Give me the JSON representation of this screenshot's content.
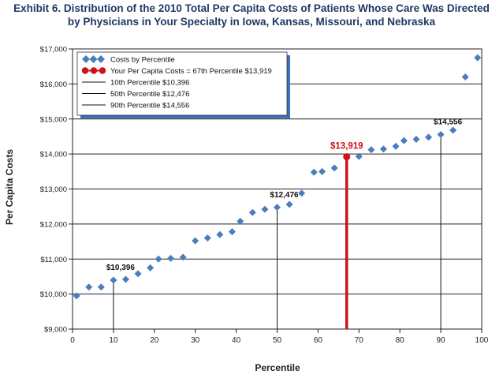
{
  "title_line1": "Exhibit 6. Distribution of the 2010 Total Per Capita Costs of Patients Whose Care Was Directed",
  "title_line2": "by Physicians in Your Specialty in Iowa, Kansas, Missouri, and Nebraska",
  "colors": {
    "marker": "#4a7ebb",
    "highlight": "#d0101a",
    "legend_frame": "#3f6fbf",
    "title": "#1f3864"
  },
  "chart_data": {
    "type": "scatter",
    "xlabel": "Percentile",
    "ylabel": "Per Capita Costs",
    "xlim": [
      0,
      100
    ],
    "ylim": [
      9000,
      17000
    ],
    "xticks": [
      0,
      10,
      20,
      30,
      40,
      50,
      60,
      70,
      80,
      90,
      100
    ],
    "yticks": [
      9000,
      10000,
      11000,
      12000,
      13000,
      14000,
      15000,
      16000,
      17000
    ],
    "ytick_labels": [
      "$9,000",
      "$10,000",
      "$11,000",
      "$12,000",
      "$13,000",
      "$14,000",
      "$15,000",
      "$16,000",
      "$17,000"
    ],
    "grid": "horizontal",
    "series": [
      {
        "name": "Costs by Percentile",
        "points": [
          {
            "x": 1,
            "y": 9950
          },
          {
            "x": 4,
            "y": 10200
          },
          {
            "x": 7,
            "y": 10200
          },
          {
            "x": 10,
            "y": 10396
          },
          {
            "x": 13,
            "y": 10420
          },
          {
            "x": 16,
            "y": 10580
          },
          {
            "x": 19,
            "y": 10750
          },
          {
            "x": 21,
            "y": 11000
          },
          {
            "x": 24,
            "y": 11020
          },
          {
            "x": 27,
            "y": 11050
          },
          {
            "x": 30,
            "y": 11520
          },
          {
            "x": 33,
            "y": 11600
          },
          {
            "x": 36,
            "y": 11700
          },
          {
            "x": 39,
            "y": 11780
          },
          {
            "x": 41,
            "y": 12080
          },
          {
            "x": 44,
            "y": 12330
          },
          {
            "x": 47,
            "y": 12420
          },
          {
            "x": 50,
            "y": 12476
          },
          {
            "x": 53,
            "y": 12560
          },
          {
            "x": 56,
            "y": 12880
          },
          {
            "x": 59,
            "y": 13480
          },
          {
            "x": 61,
            "y": 13500
          },
          {
            "x": 64,
            "y": 13600
          },
          {
            "x": 70,
            "y": 13930
          },
          {
            "x": 73,
            "y": 14120
          },
          {
            "x": 76,
            "y": 14140
          },
          {
            "x": 79,
            "y": 14220
          },
          {
            "x": 81,
            "y": 14380
          },
          {
            "x": 84,
            "y": 14420
          },
          {
            "x": 87,
            "y": 14480
          },
          {
            "x": 90,
            "y": 14556
          },
          {
            "x": 93,
            "y": 14680
          },
          {
            "x": 96,
            "y": 16200
          },
          {
            "x": 99,
            "y": 16750
          }
        ]
      }
    ],
    "highlight": {
      "name": "Your Per Capita Costs = 67th Percentile $13,919",
      "x": 67,
      "y": 13919,
      "label": "$13,919"
    },
    "reference_lines": [
      {
        "name": "10th Percentile $10,396",
        "x": 10,
        "y": 10396,
        "label": "$10,396"
      },
      {
        "name": "50th Percentile $12,476",
        "x": 50,
        "y": 12476,
        "label": "$12,476"
      },
      {
        "name": "90th Percentile $14,556",
        "x": 90,
        "y": 14556,
        "label": "$14,556"
      }
    ],
    "legend": {
      "placement": "top-left",
      "entries": [
        "Costs by Percentile",
        "Your Per Capita Costs = 67th Percentile $13,919",
        "10th Percentile $10,396",
        "50th Percentile $12,476",
        "90th Percentile $14,556"
      ]
    }
  }
}
